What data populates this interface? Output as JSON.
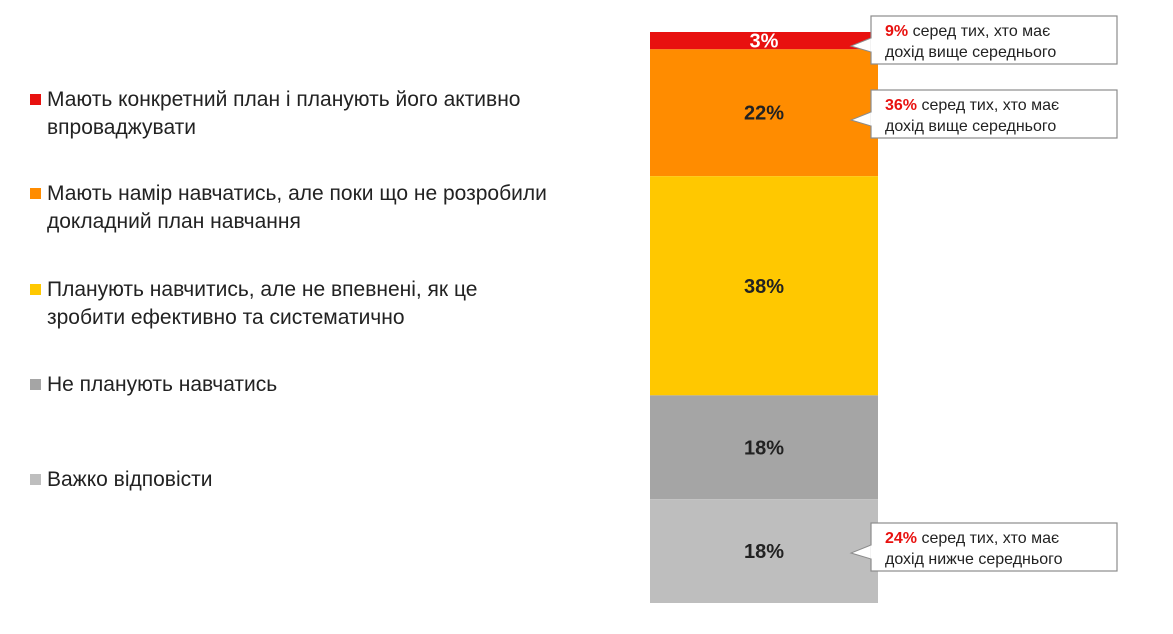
{
  "chart_data": {
    "type": "bar",
    "stacked": true,
    "orientation": "vertical",
    "series": [
      {
        "name": "Мають конкретний план і планують його активно впроваджувати",
        "value": 3,
        "label": "3%",
        "color": "#E8110F"
      },
      {
        "name": "Мають намір навчатись, але поки що не розробили докладний план навчання",
        "value": 22,
        "label": "22%",
        "color": "#FF8C00"
      },
      {
        "name": "Планують навчитись, але не впевнені, як це зробити ефективно та систематично",
        "value": 38,
        "label": "38%",
        "color": "#FFC800"
      },
      {
        "name": "Не планують навчатись",
        "value": 18,
        "label": "18%",
        "color": "#A5A5A5"
      },
      {
        "name": "Важко відповісти",
        "value": 18,
        "label": "18%",
        "color": "#BEBEBE"
      }
    ],
    "callouts": [
      {
        "series_index": 0,
        "highlight": "9%",
        "line1": " серед тих, хто має",
        "line2": "дохід вище середнього"
      },
      {
        "series_index": 1,
        "highlight": "36%",
        "line1": " серед тих, хто має",
        "line2": "дохід вище середнього"
      },
      {
        "series_index": 4,
        "highlight": "24%",
        "line1": " серед тих, хто має",
        "line2": "дохід нижче середнього"
      }
    ],
    "highlight_color": "#E8110F",
    "legend_position": "left"
  }
}
